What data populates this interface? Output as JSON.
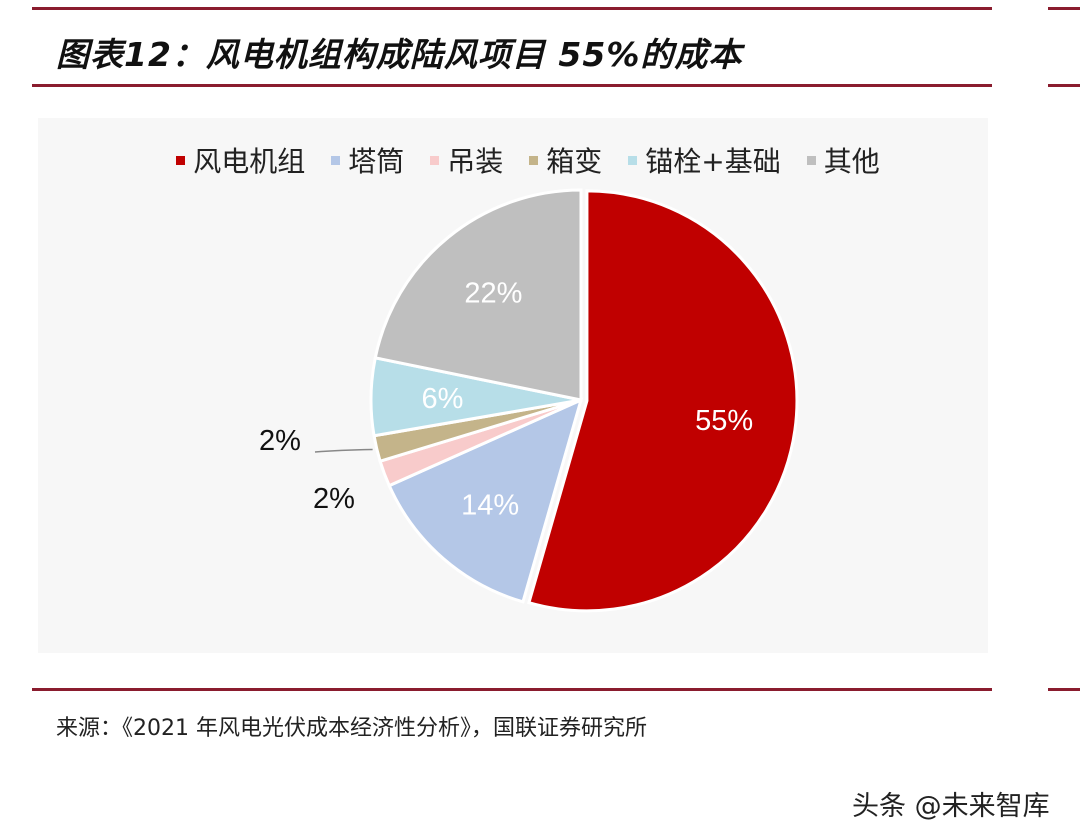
{
  "title": "图表12：风电机组构成陆风项目 55%的成本",
  "source": "来源：《2021 年风电光伏成本经济性分析》，国联证券研究所",
  "watermark": "头条 @未来智库",
  "chart_data": {
    "type": "pie",
    "title": "",
    "legend_position": "top",
    "categories": [
      "风电机组",
      "塔筒",
      "吊装",
      "箱变",
      "锚栓+基础",
      "其他"
    ],
    "values": [
      55,
      14,
      2,
      2,
      6,
      22
    ],
    "labels": [
      "55%",
      "14%",
      "2%",
      "2%",
      "6%",
      "22%"
    ],
    "colors": [
      "#C00000",
      "#B4C7E7",
      "#F8CBCB",
      "#C4B48A",
      "#B7DEE8",
      "#BFBFBF"
    ],
    "start_angle": "12 o'clock",
    "direction": "clockwise"
  }
}
